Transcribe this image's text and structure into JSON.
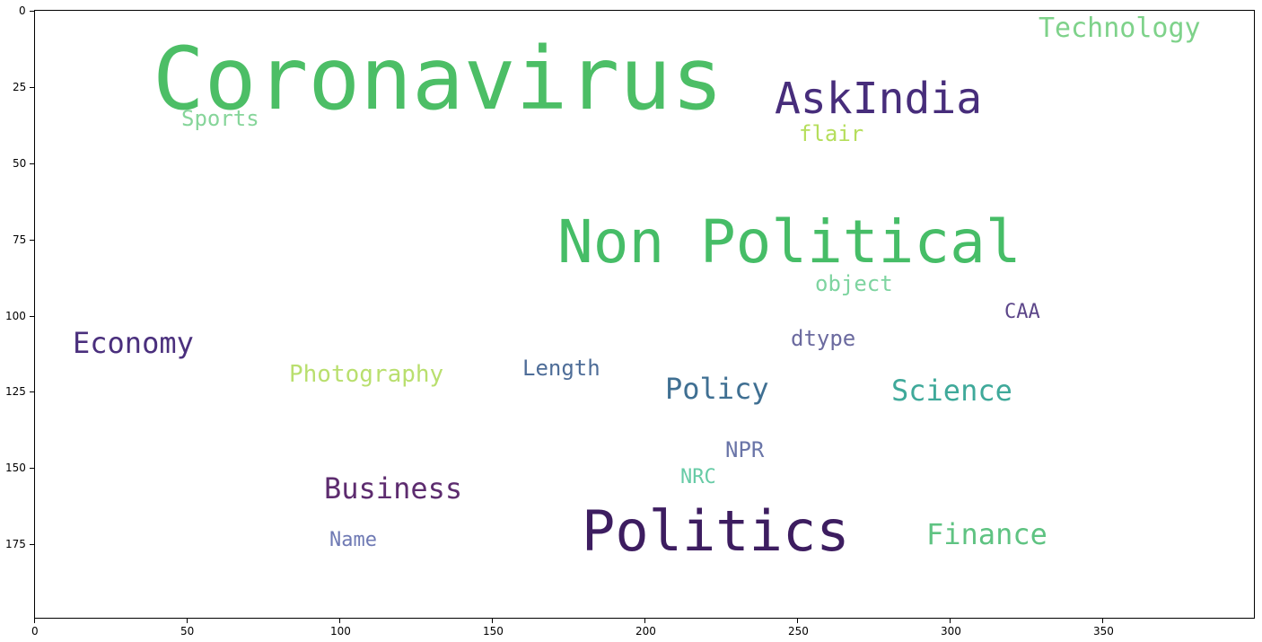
{
  "figure": {
    "x_ticks": [
      "0",
      "50",
      "100",
      "150",
      "200",
      "250",
      "300",
      "350"
    ],
    "y_ticks": [
      "0",
      "25",
      "50",
      "75",
      "100",
      "125",
      "150",
      "175"
    ]
  },
  "wordcloud": {
    "words": [
      {
        "text": "Coronavirus",
        "color": "#4cbe66"
      },
      {
        "text": "Technology",
        "color": "#7ed28a"
      },
      {
        "text": "AskIndia",
        "color": "#472d7b"
      },
      {
        "text": "Sports",
        "color": "#86d59a"
      },
      {
        "text": "flair",
        "color": "#b5de5b"
      },
      {
        "text": "Non Political",
        "color": "#46bd67"
      },
      {
        "text": "object",
        "color": "#7ed4a0"
      },
      {
        "text": "CAA",
        "color": "#5c4689"
      },
      {
        "text": "Economy",
        "color": "#4a2f7d"
      },
      {
        "text": "dtype",
        "color": "#6b6a9f"
      },
      {
        "text": "Photography",
        "color": "#b9df6e"
      },
      {
        "text": "Length",
        "color": "#4e6d98"
      },
      {
        "text": "Policy",
        "color": "#3f6f92"
      },
      {
        "text": "Science",
        "color": "#3fa99a"
      },
      {
        "text": "NPR",
        "color": "#6a75a8"
      },
      {
        "text": "NRC",
        "color": "#67cba6"
      },
      {
        "text": "Business",
        "color": "#5d2c6f"
      },
      {
        "text": "Politics",
        "color": "#3d1d60"
      },
      {
        "text": "Name",
        "color": "#6f7ab4"
      },
      {
        "text": "Finance",
        "color": "#5fc382"
      }
    ]
  }
}
